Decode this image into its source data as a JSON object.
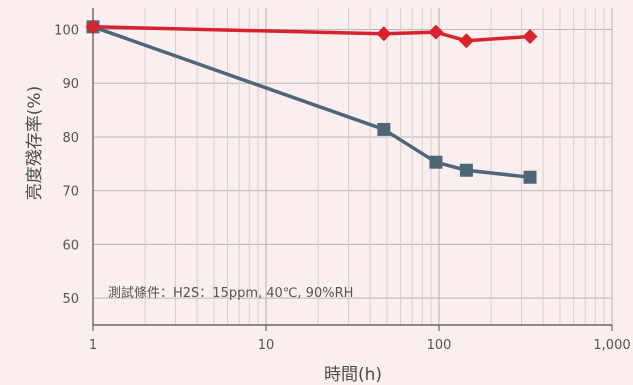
{
  "chart_data": {
    "type": "line",
    "xscale": "log",
    "xlim": [
      1,
      1000
    ],
    "ylim": [
      45,
      104
    ],
    "xticks": [
      1,
      10,
      100,
      1000
    ],
    "xtick_labels": [
      "1",
      "10",
      "100",
      "1,000"
    ],
    "yticks": [
      50,
      60,
      70,
      80,
      90,
      100
    ],
    "ytick_labels": [
      "50",
      "60",
      "70",
      "80",
      "90",
      "100"
    ],
    "xlabel": "時間(h)",
    "ylabel": "亮度殘存率(%)",
    "annotation": "測試條件：H2S：15ppm, 40℃, 90%RH",
    "grid": true,
    "series": [
      {
        "color": "#d8232e",
        "marker": "diamond",
        "x": [
          1,
          48,
          96,
          144,
          336
        ],
        "y": [
          100.5,
          99.2,
          99.5,
          97.9,
          98.7
        ]
      },
      {
        "color": "#4f6679",
        "marker": "square",
        "x": [
          1,
          48,
          96,
          144,
          336
        ],
        "y": [
          100.5,
          81.4,
          75.3,
          73.8,
          72.5
        ]
      }
    ]
  }
}
